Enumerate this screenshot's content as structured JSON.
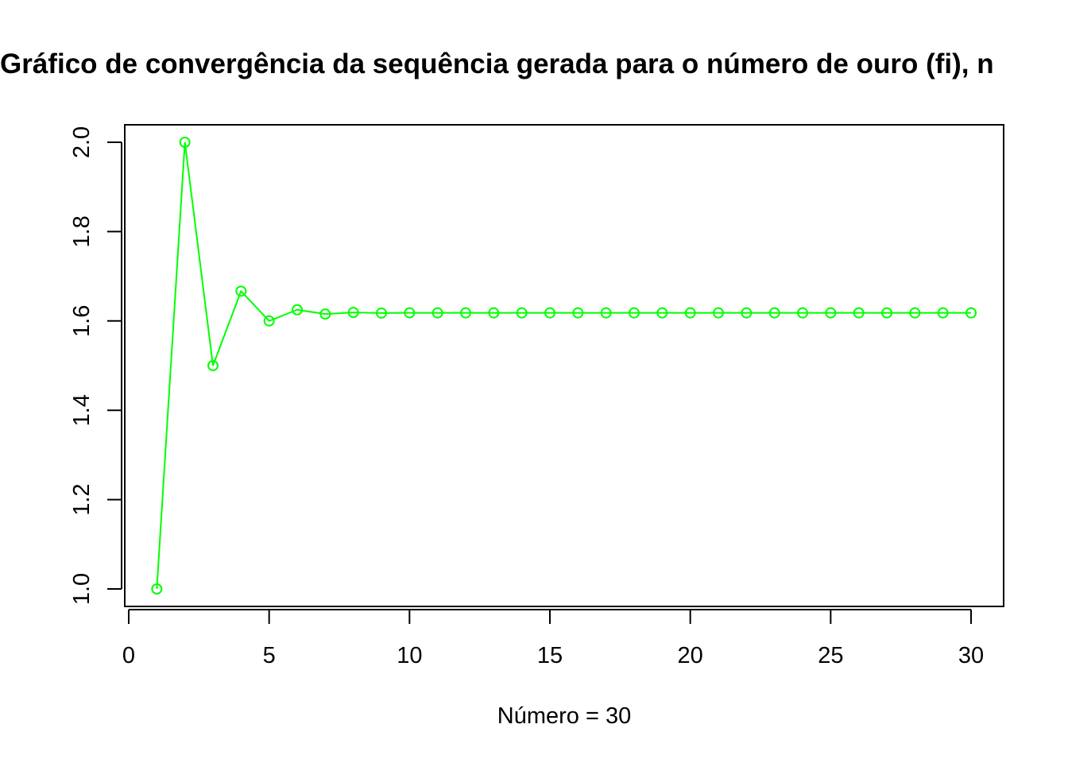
{
  "chart_data": {
    "type": "line",
    "title": "Gráfico de convergência da sequência gerada para o número de ouro (fi), n",
    "xlabel": "Número = 30",
    "ylabel": "",
    "xlim": [
      0,
      30
    ],
    "ylim": [
      1.0,
      2.0
    ],
    "x_ticks": [
      "0",
      "5",
      "10",
      "15",
      "20",
      "25",
      "30"
    ],
    "y_ticks": [
      "1.0",
      "1.2",
      "1.4",
      "1.6",
      "1.8",
      "2.0"
    ],
    "grid": false,
    "color": "#00ff00",
    "markers": "open-circle",
    "x": [
      1,
      2,
      3,
      4,
      5,
      6,
      7,
      8,
      9,
      10,
      11,
      12,
      13,
      14,
      15,
      16,
      17,
      18,
      19,
      20,
      21,
      22,
      23,
      24,
      25,
      26,
      27,
      28,
      29,
      30
    ],
    "values": [
      1.0,
      2.0,
      1.5,
      1.6667,
      1.6,
      1.625,
      1.6154,
      1.619,
      1.6176,
      1.6182,
      1.618,
      1.618,
      1.618,
      1.618,
      1.618,
      1.618,
      1.618,
      1.618,
      1.618,
      1.618,
      1.618,
      1.618,
      1.618,
      1.618,
      1.618,
      1.618,
      1.618,
      1.618,
      1.618,
      1.618
    ]
  }
}
